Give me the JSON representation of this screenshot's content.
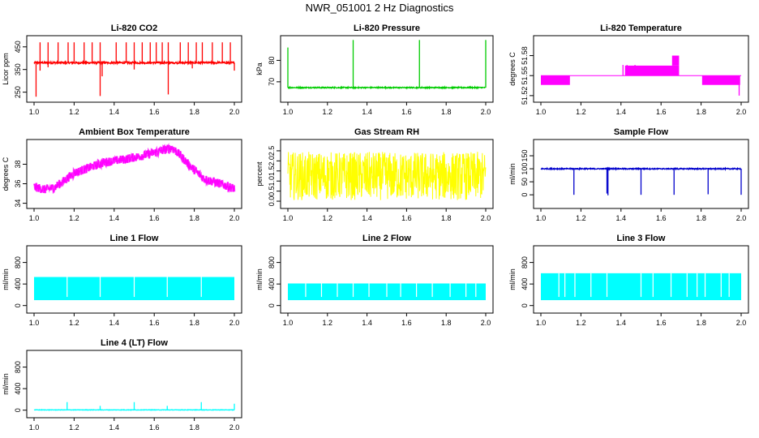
{
  "page_title": "NWR_051001  2 Hz Diagnostics",
  "chart_data": [
    {
      "id": "co2",
      "type": "line",
      "title": "Li-820 CO2",
      "ylabel": "Licor ppm",
      "xlim": [
        1.0,
        2.0
      ],
      "ylim": [
        220,
        485
      ],
      "yticks": [
        "250",
        "350",
        "450"
      ],
      "ytick_values": [
        250,
        350,
        450
      ],
      "xticks": [
        "1.0",
        "1.2",
        "1.4",
        "1.6",
        "1.8",
        "2.0"
      ],
      "color": "#ff0000",
      "baseline": 380,
      "noise": 4,
      "spikes_up": [
        [
          1.03,
          470
        ],
        [
          1.07,
          470
        ],
        [
          1.12,
          470
        ],
        [
          1.17,
          470
        ],
        [
          1.2,
          470
        ],
        [
          1.25,
          470
        ],
        [
          1.29,
          470
        ],
        [
          1.33,
          470
        ],
        [
          1.41,
          470
        ],
        [
          1.46,
          470
        ],
        [
          1.5,
          470
        ],
        [
          1.54,
          470
        ],
        [
          1.58,
          470
        ],
        [
          1.61,
          470
        ],
        [
          1.64,
          470
        ],
        [
          1.67,
          470
        ],
        [
          1.73,
          470
        ],
        [
          1.77,
          470
        ],
        [
          1.81,
          470
        ],
        [
          1.84,
          470
        ],
        [
          1.89,
          470
        ],
        [
          1.94,
          470
        ],
        [
          1.98,
          470
        ]
      ],
      "spikes_down": [
        [
          1.01,
          230
        ],
        [
          1.03,
          345
        ],
        [
          1.07,
          360
        ],
        [
          1.33,
          233
        ],
        [
          1.34,
          320
        ],
        [
          1.5,
          350
        ],
        [
          1.67,
          240
        ],
        [
          1.79,
          355
        ],
        [
          2.0,
          345
        ]
      ]
    },
    {
      "id": "pressure",
      "type": "line",
      "title": "Li-820 Pressure",
      "ylabel": "kPa",
      "xlim": [
        1.0,
        2.0
      ],
      "ylim": [
        62,
        90
      ],
      "yticks": [
        "70",
        "80"
      ],
      "ytick_values": [
        70,
        80
      ],
      "xticks": [
        "1.0",
        "1.2",
        "1.4",
        "1.6",
        "1.8",
        "2.0"
      ],
      "color": "#00cc00",
      "baseline": 67.3,
      "noise": 0.25,
      "spikes_up": [
        [
          1.0,
          86
        ],
        [
          1.33,
          89.5
        ],
        [
          1.665,
          89.5
        ],
        [
          2.0,
          89.5
        ]
      ],
      "spikes_down": []
    },
    {
      "id": "temperature",
      "type": "line",
      "title": "Li-820 Temperature",
      "ylabel": "degrees C",
      "xlim": [
        1.0,
        2.0
      ],
      "ylim": [
        51.515,
        51.605
      ],
      "yticks": [
        "51.52",
        "51.55",
        "51.58"
      ],
      "ytick_values": [
        51.52,
        51.55,
        51.58
      ],
      "xticks": [
        "1.0",
        "1.2",
        "1.4",
        "1.6",
        "1.8",
        "2.0"
      ],
      "color": "#ff00ff",
      "baseline": 51.55,
      "bands": [
        [
          1.0,
          1.145,
          51.536,
          51.55
        ],
        [
          1.42,
          1.69,
          51.55,
          51.565
        ],
        [
          1.655,
          1.69,
          51.565,
          51.58
        ],
        [
          1.805,
          1.995,
          51.536,
          51.55
        ]
      ],
      "spikes_up": [
        [
          1.41,
          51.566
        ],
        [
          1.43,
          51.566
        ],
        [
          1.47,
          51.566
        ]
      ],
      "spikes_down": [
        [
          1.99,
          51.52
        ]
      ]
    },
    {
      "id": "ambient",
      "type": "line",
      "title": "Ambient Box Temperature",
      "ylabel": "degrees C",
      "xlim": [
        1.0,
        2.0
      ],
      "ylim": [
        33.8,
        40.2
      ],
      "yticks": [
        "34",
        "36",
        "38"
      ],
      "ytick_values": [
        34,
        36,
        38
      ],
      "xticks": [
        "1.0",
        "1.2",
        "1.4",
        "1.6",
        "1.8",
        "2.0"
      ],
      "color": "#ff00ff",
      "noise": 0.45,
      "trend": [
        [
          1.0,
          35.7
        ],
        [
          1.05,
          35.4
        ],
        [
          1.1,
          35.6
        ],
        [
          1.15,
          36.3
        ],
        [
          1.2,
          37.1
        ],
        [
          1.27,
          37.6
        ],
        [
          1.35,
          38.2
        ],
        [
          1.45,
          38.5
        ],
        [
          1.55,
          38.9
        ],
        [
          1.62,
          39.3
        ],
        [
          1.69,
          39.7
        ],
        [
          1.73,
          38.9
        ],
        [
          1.78,
          37.8
        ],
        [
          1.85,
          36.5
        ],
        [
          1.93,
          36.0
        ],
        [
          2.0,
          35.5
        ]
      ]
    },
    {
      "id": "rh",
      "type": "line",
      "title": "Gas Stream RH",
      "ylabel": "percent",
      "xlim": [
        1.0,
        2.0
      ],
      "ylim": [
        -0.2,
        2.9
      ],
      "yticks": [
        "0.0",
        "0.5",
        "1.0",
        "1.5",
        "2.0",
        "2.5"
      ],
      "ytick_values": [
        0,
        0.5,
        1.0,
        1.5,
        2.0,
        2.5
      ],
      "xticks": [
        "1.0",
        "1.2",
        "1.4",
        "1.6",
        "1.8",
        "2.0"
      ],
      "color": "#ffff00",
      "baseline": 1.25,
      "noise": 1.2
    },
    {
      "id": "sample_flow",
      "type": "line",
      "title": "Sample Flow",
      "ylabel": "ml/min",
      "xlim": [
        1.0,
        2.0
      ],
      "ylim": [
        -40,
        200
      ],
      "yticks": [
        "0",
        "50",
        "100",
        "150"
      ],
      "ytick_values": [
        0,
        50,
        100,
        150
      ],
      "xticks": [
        "1.0",
        "1.2",
        "1.4",
        "1.6",
        "1.8",
        "2.0"
      ],
      "color": "#0000cc",
      "baseline": 100,
      "noise": 2,
      "spikes_up": [],
      "spikes_down": [
        [
          1.165,
          0
        ],
        [
          1.33,
          5
        ],
        [
          1.335,
          -2
        ],
        [
          1.5,
          0
        ],
        [
          1.665,
          0
        ],
        [
          1.835,
          2
        ],
        [
          2.0,
          0
        ]
      ]
    },
    {
      "id": "line1",
      "type": "line",
      "title": "Line 1 Flow",
      "ylabel": "ml/min",
      "xlim": [
        1.0,
        2.0
      ],
      "ylim": [
        -80,
        1050
      ],
      "yticks": [
        "0",
        "400",
        "800"
      ],
      "ytick_values": [
        0,
        400,
        800
      ],
      "xticks": [
        "1.0",
        "1.2",
        "1.4",
        "1.6",
        "1.8",
        "2.0"
      ],
      "color": "#00ffff",
      "band": [
        100,
        530
      ],
      "gaps": [
        1.165,
        1.33,
        1.5,
        1.665,
        1.835
      ]
    },
    {
      "id": "line2",
      "type": "line",
      "title": "Line 2 Flow",
      "ylabel": "ml/min",
      "xlim": [
        1.0,
        2.0
      ],
      "ylim": [
        -80,
        1050
      ],
      "yticks": [
        "0",
        "400",
        "800"
      ],
      "ytick_values": [
        0,
        400,
        800
      ],
      "xticks": [
        "1.0",
        "1.2",
        "1.4",
        "1.6",
        "1.8",
        "2.0"
      ],
      "color": "#00ffff",
      "band": [
        100,
        410
      ],
      "gaps": [
        1.09,
        1.17,
        1.25,
        1.33,
        1.41,
        1.5,
        1.57,
        1.65,
        1.73,
        1.82,
        1.9,
        1.95
      ]
    },
    {
      "id": "line3",
      "type": "line",
      "title": "Line 3 Flow",
      "ylabel": "ml/min",
      "xlim": [
        1.0,
        2.0
      ],
      "ylim": [
        -80,
        1050
      ],
      "yticks": [
        "0",
        "400",
        "800"
      ],
      "ytick_values": [
        0,
        400,
        800
      ],
      "xticks": [
        "1.0",
        "1.2",
        "1.4",
        "1.6",
        "1.8",
        "2.0"
      ],
      "color": "#00ffff",
      "band": [
        100,
        600
      ],
      "gaps": [
        1.09,
        1.12,
        1.17,
        1.25,
        1.33,
        1.5,
        1.56,
        1.65,
        1.73,
        1.78,
        1.82,
        1.9,
        1.94
      ]
    },
    {
      "id": "line4",
      "type": "line",
      "title": "Line 4 (LT) Flow",
      "ylabel": "ml/min",
      "xlim": [
        1.0,
        2.0
      ],
      "ylim": [
        -80,
        1050
      ],
      "yticks": [
        "0",
        "400",
        "800"
      ],
      "ytick_values": [
        0,
        400,
        800
      ],
      "xticks": [
        "1.0",
        "1.2",
        "1.4",
        "1.6",
        "1.8",
        "2.0"
      ],
      "color": "#00ffff",
      "baseline": 5,
      "noise": 4,
      "spikes_up": [
        [
          1.165,
          150
        ],
        [
          1.33,
          80
        ],
        [
          1.5,
          150
        ],
        [
          1.665,
          80
        ],
        [
          1.835,
          150
        ],
        [
          2.0,
          120
        ]
      ],
      "spikes_down": []
    }
  ]
}
